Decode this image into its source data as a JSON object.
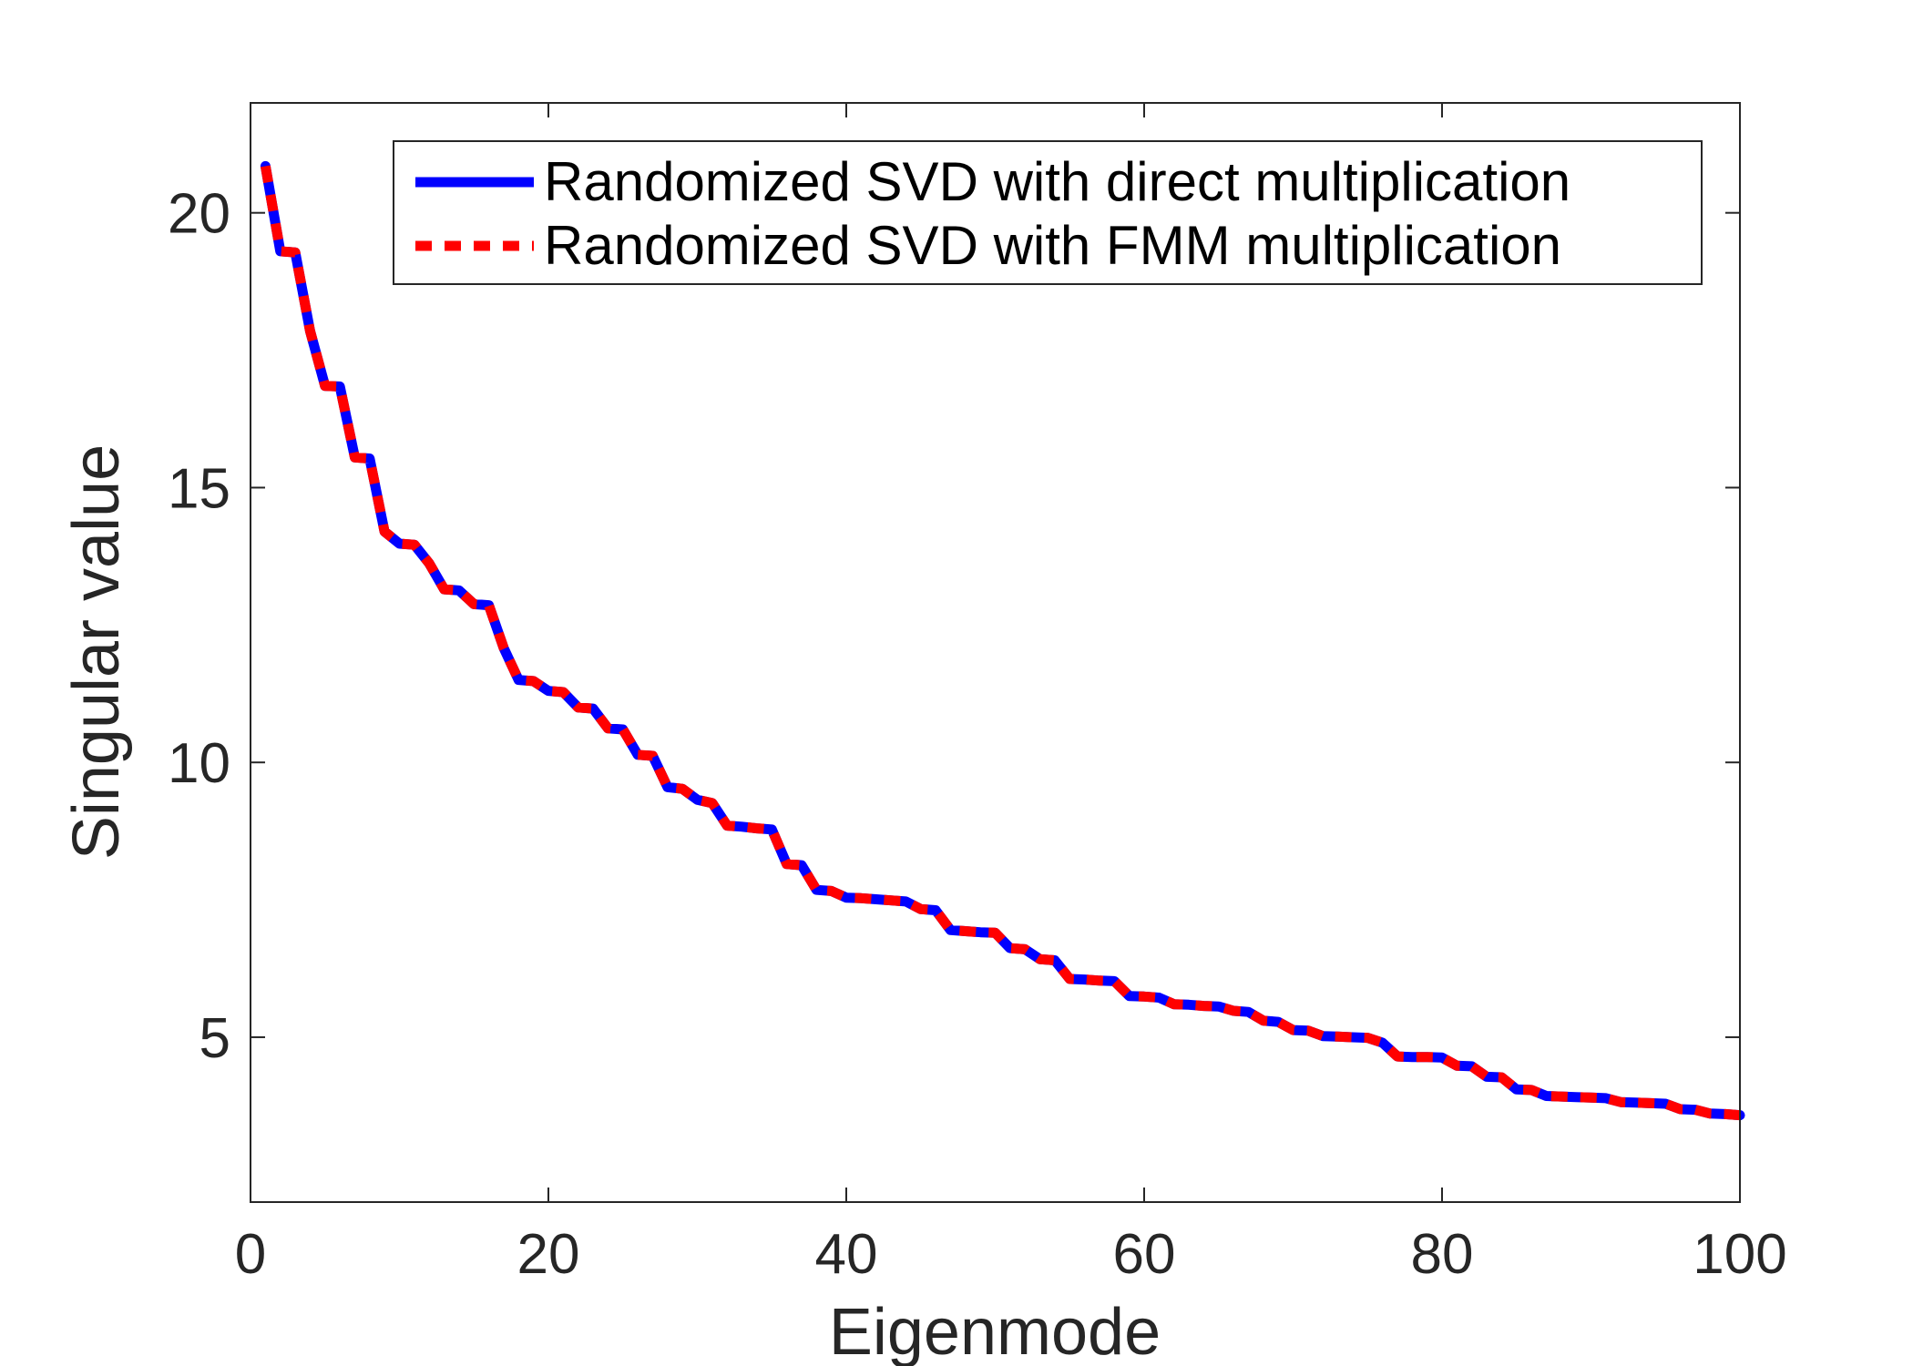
{
  "chart_data": {
    "type": "line",
    "title": "",
    "xlabel": "Eigenmode",
    "ylabel": "Singular value",
    "xlim": [
      0,
      100
    ],
    "ylim": [
      2,
      22
    ],
    "xticks": [
      0,
      20,
      40,
      60,
      80,
      100
    ],
    "yticks": [
      5,
      10,
      15,
      20
    ],
    "grid": false,
    "legend_position": "top-right",
    "series": [
      {
        "name": "Randomized SVD with direct multiplication",
        "color": "#0000ff",
        "style": "solid",
        "x": [
          1,
          2,
          3,
          4,
          5,
          6,
          7,
          8,
          9,
          10,
          11,
          12,
          13,
          14,
          15,
          16,
          17,
          18,
          19,
          20,
          21,
          22,
          23,
          24,
          25,
          26,
          27,
          28,
          29,
          30,
          31,
          32,
          33,
          34,
          35,
          36,
          37,
          38,
          39,
          40,
          41,
          42,
          43,
          44,
          45,
          46,
          47,
          48,
          49,
          50,
          51,
          52,
          53,
          54,
          55,
          56,
          57,
          58,
          59,
          60,
          61,
          62,
          63,
          64,
          65,
          66,
          67,
          68,
          69,
          70,
          71,
          72,
          73,
          74,
          75,
          76,
          77,
          78,
          79,
          80,
          81,
          82,
          83,
          84,
          85,
          86,
          87,
          88,
          89,
          90,
          91,
          92,
          93,
          94,
          95,
          96,
          97,
          98,
          99,
          100
        ],
        "values": [
          20.85,
          19.3,
          19.28,
          17.85,
          16.85,
          16.84,
          15.55,
          15.53,
          14.2,
          13.98,
          13.96,
          13.62,
          13.15,
          13.13,
          12.88,
          12.86,
          12.08,
          11.5,
          11.48,
          11.3,
          11.28,
          11,
          10.98,
          10.62,
          10.6,
          10.14,
          10.12,
          9.55,
          9.52,
          9.32,
          9.26,
          8.85,
          8.83,
          8.8,
          8.78,
          8.15,
          8.13,
          7.68,
          7.66,
          7.54,
          7.53,
          7.51,
          7.49,
          7.47,
          7.33,
          7.31,
          6.95,
          6.93,
          6.91,
          6.9,
          6.62,
          6.6,
          6.42,
          6.4,
          6.06,
          6.05,
          6.03,
          6.02,
          5.75,
          5.74,
          5.72,
          5.6,
          5.59,
          5.57,
          5.56,
          5.48,
          5.46,
          5.3,
          5.28,
          5.13,
          5.12,
          5.02,
          5.01,
          5,
          4.99,
          4.9,
          4.65,
          4.64,
          4.64,
          4.63,
          4.48,
          4.47,
          4.28,
          4.27,
          4.05,
          4.04,
          3.93,
          3.92,
          3.91,
          3.9,
          3.89,
          3.82,
          3.81,
          3.8,
          3.79,
          3.69,
          3.68,
          3.61,
          3.6,
          3.58
        ]
      },
      {
        "name": "Randomized SVD with FMM multiplication",
        "color": "#ff0000",
        "style": "dashed",
        "x": [
          1,
          2,
          3,
          4,
          5,
          6,
          7,
          8,
          9,
          10,
          11,
          12,
          13,
          14,
          15,
          16,
          17,
          18,
          19,
          20,
          21,
          22,
          23,
          24,
          25,
          26,
          27,
          28,
          29,
          30,
          31,
          32,
          33,
          34,
          35,
          36,
          37,
          38,
          39,
          40,
          41,
          42,
          43,
          44,
          45,
          46,
          47,
          48,
          49,
          50,
          51,
          52,
          53,
          54,
          55,
          56,
          57,
          58,
          59,
          60,
          61,
          62,
          63,
          64,
          65,
          66,
          67,
          68,
          69,
          70,
          71,
          72,
          73,
          74,
          75,
          76,
          77,
          78,
          79,
          80,
          81,
          82,
          83,
          84,
          85,
          86,
          87,
          88,
          89,
          90,
          91,
          92,
          93,
          94,
          95,
          96,
          97,
          98,
          99,
          100
        ],
        "values": [
          20.85,
          19.3,
          19.28,
          17.85,
          16.85,
          16.84,
          15.55,
          15.53,
          14.2,
          13.98,
          13.96,
          13.62,
          13.15,
          13.13,
          12.88,
          12.86,
          12.08,
          11.5,
          11.48,
          11.3,
          11.28,
          11,
          10.98,
          10.62,
          10.6,
          10.14,
          10.12,
          9.55,
          9.52,
          9.32,
          9.26,
          8.85,
          8.83,
          8.8,
          8.78,
          8.15,
          8.13,
          7.68,
          7.66,
          7.54,
          7.53,
          7.51,
          7.49,
          7.47,
          7.33,
          7.31,
          6.95,
          6.93,
          6.91,
          6.9,
          6.62,
          6.6,
          6.42,
          6.4,
          6.06,
          6.05,
          6.03,
          6.02,
          5.75,
          5.74,
          5.72,
          5.6,
          5.59,
          5.57,
          5.56,
          5.48,
          5.46,
          5.3,
          5.28,
          5.13,
          5.12,
          5.02,
          5.01,
          5,
          4.99,
          4.9,
          4.65,
          4.64,
          4.64,
          4.63,
          4.48,
          4.47,
          4.28,
          4.27,
          4.05,
          4.04,
          3.93,
          3.92,
          3.91,
          3.9,
          3.89,
          3.82,
          3.81,
          3.8,
          3.79,
          3.69,
          3.68,
          3.61,
          3.6,
          3.58
        ]
      }
    ]
  }
}
